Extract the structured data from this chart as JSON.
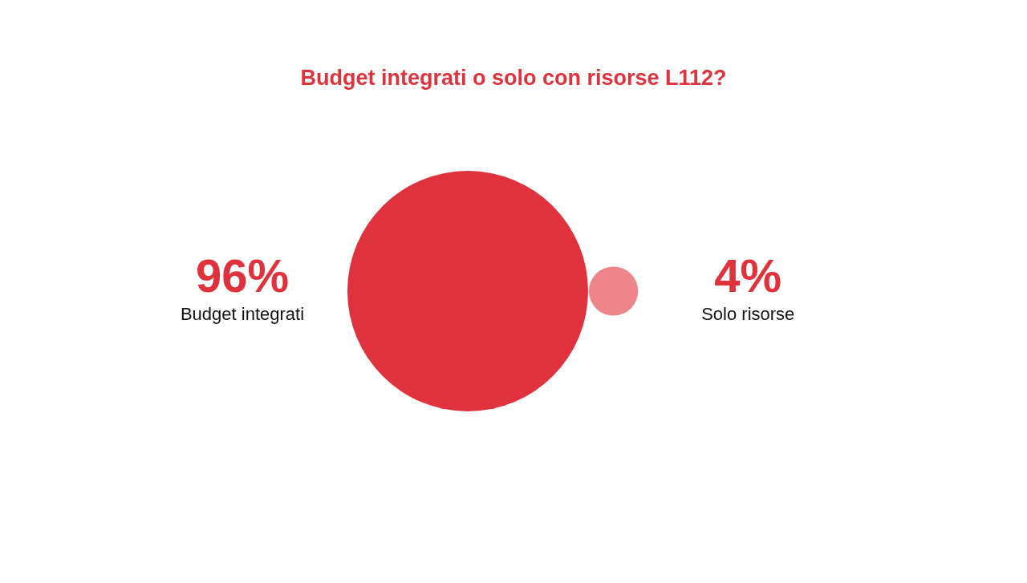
{
  "chart_data": {
    "type": "other",
    "title": "Budget integrati o solo con risorse L112?",
    "categories": [
      "Budget integrati",
      "Solo risorse"
    ],
    "values": [
      96,
      4
    ],
    "value_labels": [
      "96%",
      "4%"
    ],
    "colors": [
      "#e0323c",
      "#ee858a"
    ]
  }
}
